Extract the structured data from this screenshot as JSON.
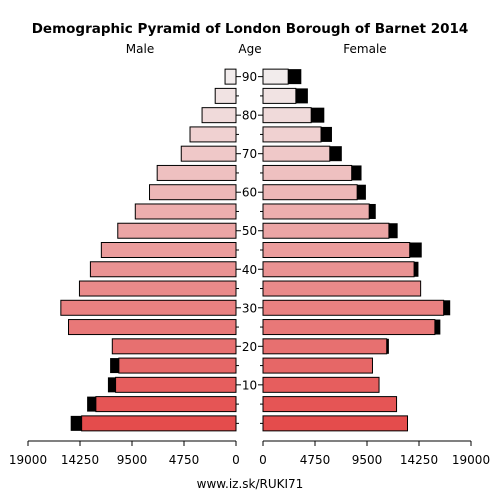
{
  "chart_data": {
    "type": "bar",
    "orientation": "horizontal-pyramid",
    "title": "Demographic Pyramid of London Borough of Barnet 2014",
    "left_label": "Male",
    "center_label": "Age",
    "right_label": "Female",
    "footer": "www.iz.sk/RUKI71",
    "xlim": [
      0,
      19000
    ],
    "ticks": [
      19000,
      14250,
      9500,
      4750,
      0
    ],
    "tick_labels_left": [
      "19000",
      "14250",
      "9500",
      "4750",
      "0"
    ],
    "tick_labels_right": [
      "0",
      "4750",
      "9500",
      "14250",
      "19000"
    ],
    "age_ticks": [
      10,
      20,
      30,
      40,
      50,
      60,
      70,
      80,
      90
    ],
    "age_tick_labels": [
      "10",
      "20",
      "30",
      "40",
      "50",
      "60",
      "70",
      "80",
      "90"
    ],
    "bin_width": 5,
    "age_groups": [
      "0",
      "5",
      "10",
      "15",
      "20",
      "25",
      "30",
      "35",
      "40",
      "45",
      "50",
      "55",
      "60",
      "65",
      "70",
      "75",
      "80",
      "85",
      "90"
    ],
    "male_values": [
      14100,
      12800,
      11000,
      10700,
      11300,
      15300,
      16000,
      14300,
      13300,
      12300,
      10800,
      9200,
      7900,
      7200,
      5000,
      4200,
      3100,
      1900,
      1000
    ],
    "male_overlay": [
      1000,
      800,
      700,
      800,
      0,
      0,
      0,
      0,
      0,
      0,
      0,
      0,
      0,
      0,
      0,
      0,
      0,
      0,
      0
    ],
    "female_values": [
      13200,
      12200,
      10600,
      10000,
      11300,
      15700,
      16500,
      14400,
      13800,
      13400,
      11500,
      9700,
      8600,
      8100,
      6100,
      5300,
      4400,
      3000,
      2300
    ],
    "female_overlay": [
      0,
      0,
      0,
      0,
      200,
      500,
      600,
      0,
      400,
      1100,
      800,
      600,
      800,
      900,
      1100,
      1000,
      1200,
      1100,
      1200
    ]
  }
}
